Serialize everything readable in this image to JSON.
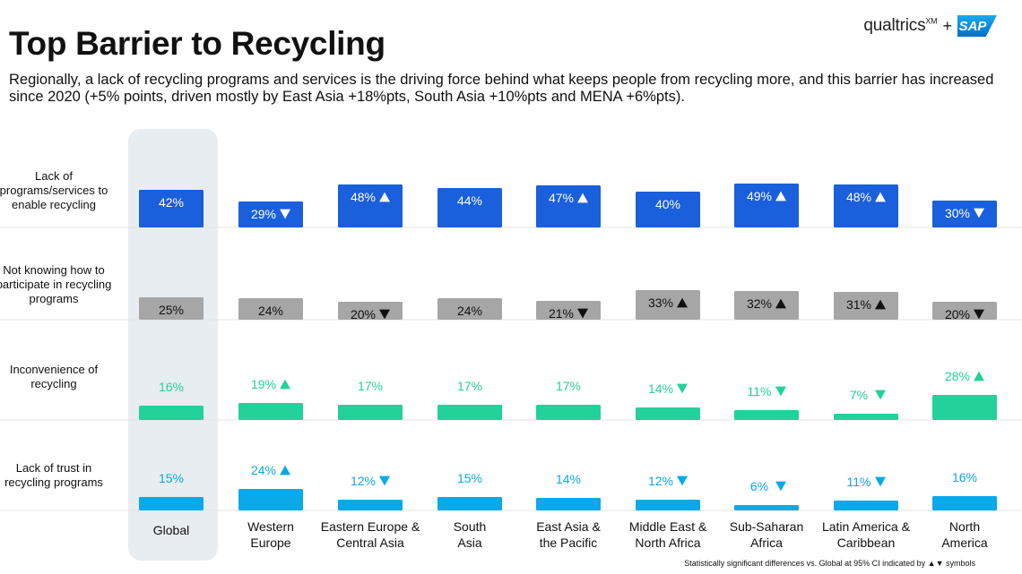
{
  "header": {
    "title": "Top Barrier to Recycling",
    "subtitle": "Regionally, a lack of recycling programs and services is the driving force behind what keeps people from recycling more, and this barrier has increased since 2020 (+5% points, driven mostly by East Asia +18%pts, South Asia +10%pts and MENA +6%pts)."
  },
  "logo": {
    "qualtrics": "qualtrics",
    "xm": "XM",
    "plus": "+",
    "sap": "SAP"
  },
  "footnote": "Statistically significant differences vs. Global at 95% CI indicated by ▲▼ symbols",
  "colors": {
    "row1": "#1a5fdc",
    "row2": "#a6a6a6",
    "row3": "#23d19a",
    "row4": "#0aa9ea",
    "global_highlight": "#e8edf1",
    "row3_label_text": "#23d19a",
    "row4_label_text": "#0aa9ea"
  },
  "chart_data": {
    "type": "bar",
    "title": "Top Barrier to Recycling",
    "categories": [
      "Global",
      "Western Europe",
      "Eastern Europe & Central Asia",
      "South Asia",
      "East Asia & the Pacific",
      "Middle East & North Africa",
      "Sub-Saharan Africa",
      "Latin America & Caribbean",
      "North America"
    ],
    "category_lines": [
      [
        "Global"
      ],
      [
        "Western",
        "Europe"
      ],
      [
        "Eastern Europe &",
        "Central Asia"
      ],
      [
        "South",
        "Asia"
      ],
      [
        "East Asia &",
        "the Pacific"
      ],
      [
        "Middle East &",
        "North Africa"
      ],
      [
        "Sub-Saharan",
        "Africa"
      ],
      [
        "Latin America &",
        "Caribbean"
      ],
      [
        "North",
        "America"
      ]
    ],
    "highlighted_category": "Global",
    "ylim": [
      0,
      80
    ],
    "series": [
      {
        "name": "Lack of programs/services to enable recycling",
        "label_lines": [
          "Lack of",
          "programs/services to",
          "enable recycling"
        ],
        "values": [
          42,
          29,
          48,
          44,
          47,
          40,
          49,
          48,
          30
        ],
        "labels": [
          "42%",
          "29%",
          "48%",
          "44%",
          "47%",
          "40%",
          "49%",
          "48%",
          "30%"
        ],
        "significance": [
          "",
          "down",
          "up",
          "",
          "up",
          "",
          "up",
          "up",
          "down"
        ]
      },
      {
        "name": "Not knowing how to participate in recycling programs",
        "label_lines": [
          "Not knowing how to",
          "participate in recycling",
          "programs"
        ],
        "values": [
          25,
          24,
          20,
          24,
          21,
          33,
          32,
          31,
          20
        ],
        "labels": [
          "25%",
          "24%",
          "20%",
          "24%",
          "21%",
          "33%",
          "32%",
          "31%",
          "20%"
        ],
        "significance": [
          "",
          "",
          "down",
          "",
          "down",
          "up",
          "up",
          "up",
          "down"
        ]
      },
      {
        "name": "Inconvenience of recycling",
        "label_lines": [
          "Inconvenience of",
          "recycling"
        ],
        "values": [
          16,
          19,
          17,
          17,
          17,
          14,
          11,
          7,
          28
        ],
        "labels": [
          "16%",
          "19%",
          "17%",
          "17%",
          "17%",
          "14%",
          "11%",
          "7%",
          "28%"
        ],
        "significance": [
          "",
          "up",
          "",
          "",
          "",
          "down",
          "down",
          "down",
          "up"
        ]
      },
      {
        "name": "Lack of trust in recycling programs",
        "label_lines": [
          "Lack of trust in",
          "recycling programs"
        ],
        "values": [
          15,
          24,
          12,
          15,
          14,
          12,
          6,
          11,
          16
        ],
        "labels": [
          "15%",
          "24%",
          "12%",
          "15%",
          "14%",
          "12%",
          "6%",
          "11%",
          "16%"
        ],
        "significance": [
          "",
          "up",
          "down",
          "",
          "",
          "down",
          "down",
          "down",
          ""
        ]
      }
    ]
  }
}
